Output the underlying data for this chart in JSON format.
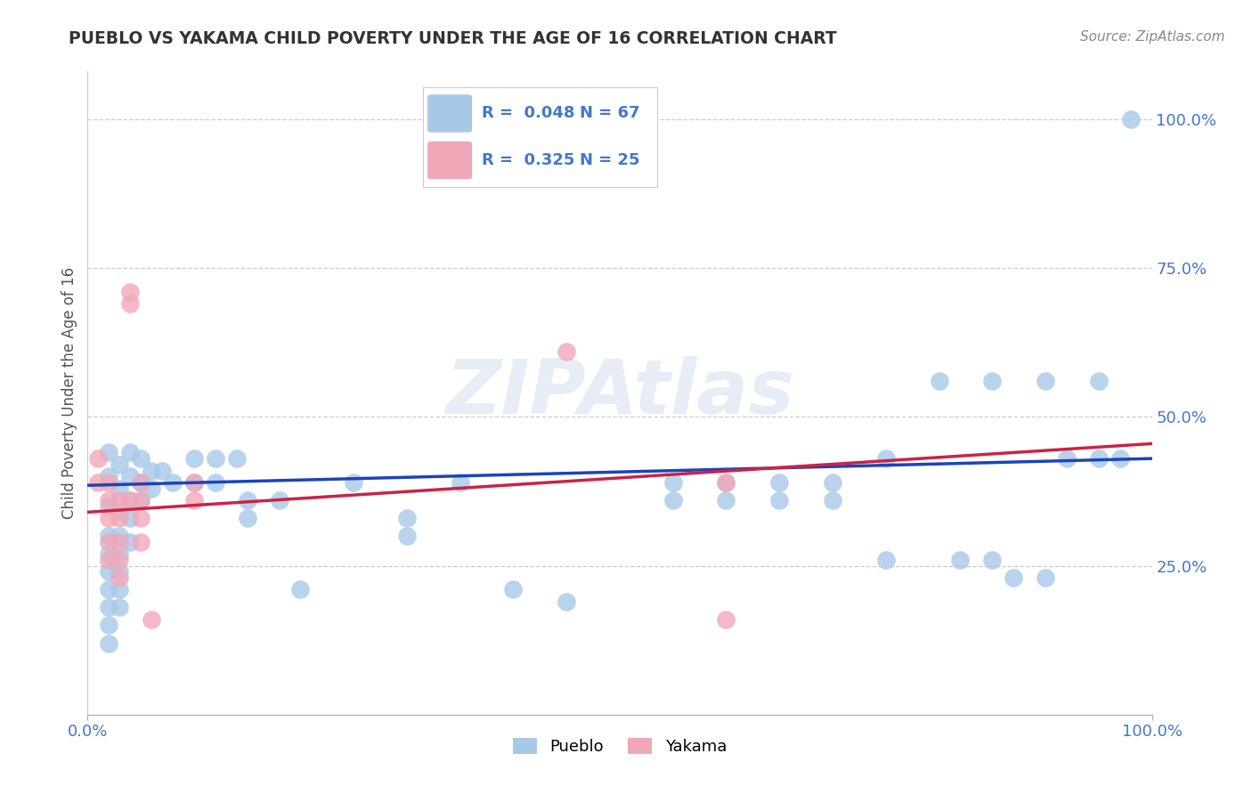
{
  "title": "PUEBLO VS YAKAMA CHILD POVERTY UNDER THE AGE OF 16 CORRELATION CHART",
  "source": "Source: ZipAtlas.com",
  "ylabel": "Child Poverty Under the Age of 16",
  "watermark": "ZIPAtlas",
  "legend_pueblo": "Pueblo",
  "legend_yakama": "Yakama",
  "R_pueblo": "0.048",
  "N_pueblo": "67",
  "R_yakama": "0.325",
  "N_yakama": "25",
  "pueblo_color": "#a8c8e8",
  "yakama_color": "#f0a8b8",
  "pueblo_line_color": "#1a44bb",
  "yakama_line_color": "#cc2244",
  "grid_color": "#cccccc",
  "background_color": "#ffffff",
  "tick_color": "#4477cc",
  "pueblo_scatter": [
    [
      0.02,
      0.44
    ],
    [
      0.02,
      0.4
    ],
    [
      0.02,
      0.35
    ],
    [
      0.02,
      0.3
    ],
    [
      0.02,
      0.27
    ],
    [
      0.02,
      0.24
    ],
    [
      0.02,
      0.21
    ],
    [
      0.02,
      0.18
    ],
    [
      0.02,
      0.15
    ],
    [
      0.02,
      0.12
    ],
    [
      0.03,
      0.42
    ],
    [
      0.03,
      0.38
    ],
    [
      0.03,
      0.34
    ],
    [
      0.03,
      0.3
    ],
    [
      0.03,
      0.27
    ],
    [
      0.03,
      0.24
    ],
    [
      0.03,
      0.21
    ],
    [
      0.03,
      0.18
    ],
    [
      0.04,
      0.44
    ],
    [
      0.04,
      0.4
    ],
    [
      0.04,
      0.36
    ],
    [
      0.04,
      0.33
    ],
    [
      0.04,
      0.29
    ],
    [
      0.05,
      0.43
    ],
    [
      0.05,
      0.39
    ],
    [
      0.05,
      0.36
    ],
    [
      0.06,
      0.41
    ],
    [
      0.06,
      0.38
    ],
    [
      0.07,
      0.41
    ],
    [
      0.08,
      0.39
    ],
    [
      0.1,
      0.43
    ],
    [
      0.1,
      0.39
    ],
    [
      0.12,
      0.43
    ],
    [
      0.12,
      0.39
    ],
    [
      0.14,
      0.43
    ],
    [
      0.15,
      0.36
    ],
    [
      0.15,
      0.33
    ],
    [
      0.18,
      0.36
    ],
    [
      0.2,
      0.21
    ],
    [
      0.25,
      0.39
    ],
    [
      0.3,
      0.33
    ],
    [
      0.3,
      0.3
    ],
    [
      0.35,
      0.39
    ],
    [
      0.4,
      0.21
    ],
    [
      0.45,
      0.19
    ],
    [
      0.55,
      0.39
    ],
    [
      0.55,
      0.36
    ],
    [
      0.6,
      0.39
    ],
    [
      0.6,
      0.36
    ],
    [
      0.65,
      0.39
    ],
    [
      0.65,
      0.36
    ],
    [
      0.7,
      0.39
    ],
    [
      0.7,
      0.36
    ],
    [
      0.75,
      0.43
    ],
    [
      0.75,
      0.26
    ],
    [
      0.8,
      0.56
    ],
    [
      0.82,
      0.26
    ],
    [
      0.85,
      0.56
    ],
    [
      0.85,
      0.26
    ],
    [
      0.87,
      0.23
    ],
    [
      0.9,
      0.56
    ],
    [
      0.9,
      0.23
    ],
    [
      0.92,
      0.43
    ],
    [
      0.95,
      0.56
    ],
    [
      0.95,
      0.43
    ],
    [
      0.97,
      0.43
    ],
    [
      0.98,
      1.0
    ]
  ],
  "yakama_scatter": [
    [
      0.01,
      0.43
    ],
    [
      0.01,
      0.39
    ],
    [
      0.02,
      0.39
    ],
    [
      0.02,
      0.36
    ],
    [
      0.02,
      0.33
    ],
    [
      0.02,
      0.29
    ],
    [
      0.02,
      0.26
    ],
    [
      0.03,
      0.36
    ],
    [
      0.03,
      0.33
    ],
    [
      0.03,
      0.29
    ],
    [
      0.03,
      0.26
    ],
    [
      0.03,
      0.23
    ],
    [
      0.04,
      0.71
    ],
    [
      0.04,
      0.69
    ],
    [
      0.04,
      0.36
    ],
    [
      0.05,
      0.39
    ],
    [
      0.05,
      0.36
    ],
    [
      0.05,
      0.33
    ],
    [
      0.05,
      0.29
    ],
    [
      0.06,
      0.16
    ],
    [
      0.1,
      0.39
    ],
    [
      0.1,
      0.36
    ],
    [
      0.45,
      0.61
    ],
    [
      0.6,
      0.39
    ],
    [
      0.6,
      0.16
    ]
  ],
  "pueblo_trend_x": [
    0.0,
    1.0
  ],
  "pueblo_trend_y": [
    0.385,
    0.43
  ],
  "yakama_trend_x": [
    0.0,
    1.0
  ],
  "yakama_trend_y": [
    0.34,
    0.455
  ],
  "xlim": [
    0.0,
    1.0
  ],
  "ylim": [
    0.0,
    1.08
  ],
  "yticks": [
    0.25,
    0.5,
    0.75,
    1.0
  ],
  "ytick_labels": [
    "25.0%",
    "50.0%",
    "75.0%",
    "100.0%"
  ],
  "xticks": [
    0.0,
    1.0
  ],
  "xtick_labels": [
    "0.0%",
    "100.0%"
  ]
}
